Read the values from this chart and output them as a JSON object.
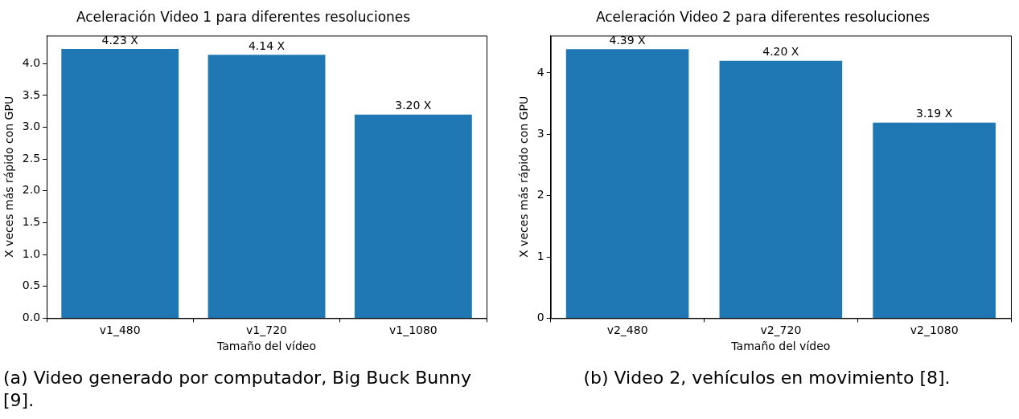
{
  "chart_data": [
    {
      "type": "bar",
      "title": "Aceleración Video 1 para diferentes resoluciones",
      "xlabel": "Tamaño del vídeo",
      "ylabel": "X veces más rápido con GPU",
      "categories": [
        "v1_480",
        "v1_720",
        "v1_1080"
      ],
      "values": [
        4.23,
        4.14,
        3.2
      ],
      "value_labels": [
        "4.23 X",
        "4.14 X",
        "3.20 X"
      ],
      "color": "#1f77b4",
      "ylim": [
        0,
        4.44
      ],
      "yticks": [
        {
          "value": 0,
          "label": "0.0"
        },
        {
          "value": 0.5,
          "label": "0.5"
        },
        {
          "value": 1,
          "label": "1.0"
        },
        {
          "value": 1.5,
          "label": "1.5"
        },
        {
          "value": 2,
          "label": "2.0"
        },
        {
          "value": 2.5,
          "label": "2.5"
        },
        {
          "value": 3,
          "label": "3.0"
        },
        {
          "value": 3.5,
          "label": "3.5"
        },
        {
          "value": 4,
          "label": "4.0"
        }
      ],
      "grid": false,
      "legend": false,
      "annotations": [
        "(a) Video generado por computador, Big Buck Bunny [9]."
      ]
    },
    {
      "type": "bar",
      "title": "Aceleración Video 2 para diferentes resoluciones",
      "xlabel": "Tamaño del vídeo",
      "ylabel": "X veces más rápido con GPU",
      "categories": [
        "v2_480",
        "v2_720",
        "v2_1080"
      ],
      "values": [
        4.39,
        4.2,
        3.19
      ],
      "value_labels": [
        "4.39 X",
        "4.20 X",
        "3.19 X"
      ],
      "color": "#1f77b4",
      "ylim": [
        0,
        4.61
      ],
      "yticks": [
        0,
        1,
        2,
        3,
        4
      ],
      "grid": false,
      "legend": false,
      "annotations": [
        "(b) Video 2, vehículos en movimiento [8]."
      ]
    }
  ]
}
